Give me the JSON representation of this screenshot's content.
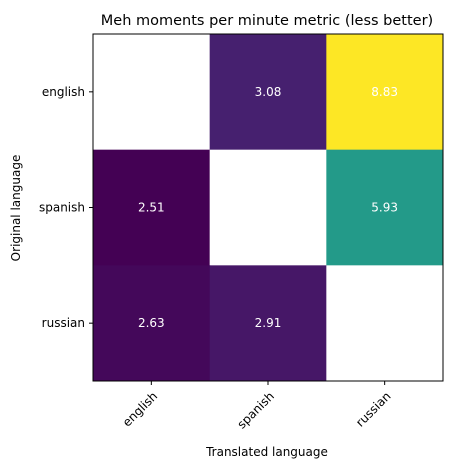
{
  "chart_data": {
    "type": "heatmap",
    "title": "Meh moments per minute metric (less better)",
    "xlabel": "Translated language",
    "ylabel": "Original language",
    "x_categories": [
      "english",
      "spanish",
      "russian"
    ],
    "y_categories": [
      "english",
      "spanish",
      "russian"
    ],
    "values": [
      [
        null,
        3.08,
        8.83
      ],
      [
        2.51,
        null,
        5.93
      ],
      [
        2.63,
        2.91,
        null
      ]
    ],
    "value_labels": [
      [
        null,
        "3.08",
        "8.83"
      ],
      [
        "2.51",
        null,
        "5.93"
      ],
      [
        "2.63",
        "2.91",
        null
      ]
    ],
    "colormap": "viridis",
    "missing_color": "#ffffff",
    "grid": false
  }
}
